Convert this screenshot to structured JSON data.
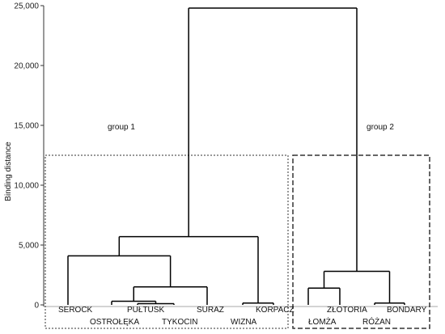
{
  "chart_data": {
    "type": "dendrogram",
    "ylabel": "Binding distance",
    "ylim": [
      0,
      25000
    ],
    "yticks": [
      0,
      5000,
      10000,
      15000,
      20000,
      25000
    ],
    "ytick_labels": [
      "0",
      "5,000",
      "10,000",
      "15,000",
      "20,000",
      "25,000"
    ],
    "grid": false,
    "leaves": [
      {
        "name": "SEROCK"
      },
      {
        "name": "OSTROŁĘKA"
      },
      {
        "name": "PUŁTUSK"
      },
      {
        "name": "TYKOCIN"
      },
      {
        "name": "SURAZ"
      },
      {
        "name": "WIZNA"
      },
      {
        "name": "KORPACZ"
      },
      {
        "name": "ŁOMŻA"
      },
      {
        "name": "ZŁOTORIA"
      },
      {
        "name": "RÓŻAN"
      },
      {
        "name": "BONDARY"
      }
    ],
    "merges": [
      {
        "id": "m1",
        "left": "PUŁTUSK",
        "right": "TYKOCIN",
        "height": 100
      },
      {
        "id": "m2",
        "left": "WIZNA",
        "right": "KORPACZ",
        "height": 150
      },
      {
        "id": "m3",
        "left": "RÓŻAN",
        "right": "BONDARY",
        "height": 150
      },
      {
        "id": "m4",
        "left": "OSTROŁĘKA",
        "right": "m1",
        "height": 300
      },
      {
        "id": "m5",
        "left": "ŁOMŻA",
        "right": "ZŁOTORIA",
        "height": 1400
      },
      {
        "id": "m6",
        "left": "m4",
        "right": "SURAZ",
        "height": 1500
      },
      {
        "id": "m7",
        "left": "m5",
        "right": "m3",
        "height": 2800
      },
      {
        "id": "m8",
        "left": "SEROCK",
        "right": "m6",
        "height": 4100
      },
      {
        "id": "m9",
        "left": "m8",
        "right": "m2",
        "height": 5700
      },
      {
        "id": "m10",
        "left": "m9",
        "right": "m7",
        "height": 24800
      }
    ],
    "groups": [
      {
        "label": "group 1",
        "members": [
          "SEROCK",
          "OSTROŁĘKA",
          "PUŁTUSK",
          "TYKOCIN",
          "SURAZ",
          "WIZNA",
          "KORPACZ"
        ],
        "box_top": 12500,
        "border": "dotted"
      },
      {
        "label": "group 2",
        "members": [
          "ŁOMŻA",
          "ZŁOTORIA",
          "RÓŻAN",
          "BONDARY"
        ],
        "box_top": 12500,
        "border": "dashed"
      }
    ],
    "colors": {
      "line": "#000000",
      "axis": "#333333"
    }
  }
}
